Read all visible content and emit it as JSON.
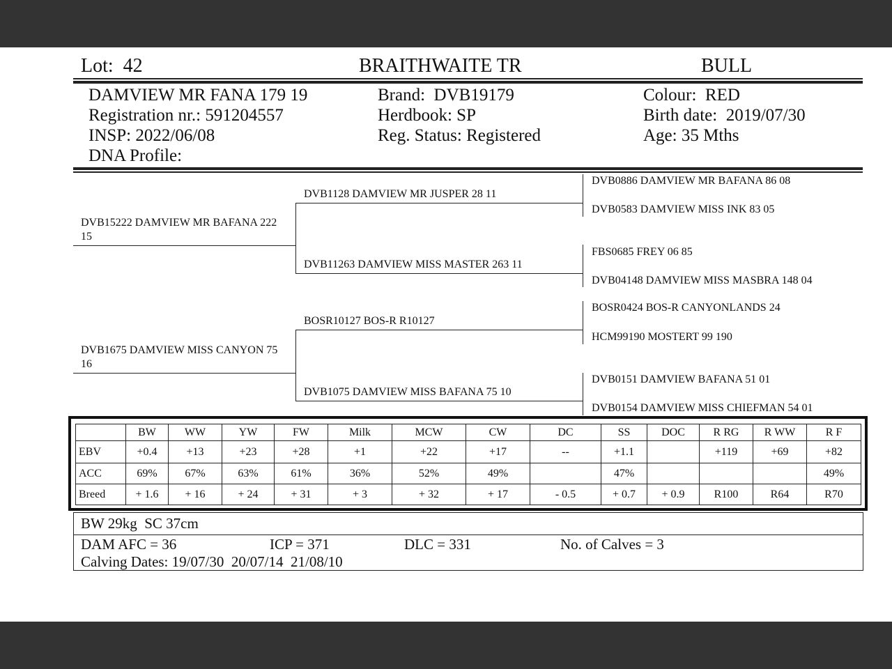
{
  "header": {
    "lot": "Lot:  42",
    "breeder": "BRAITHWAITE TR",
    "sex": "BULL"
  },
  "animal": {
    "name": "DAMVIEW MR FANA 179 19",
    "registration": "Registration nr.: 591204557",
    "insp": "INSP: 2022/06/08",
    "dna": "DNA Profile:",
    "brand": "Brand:  DVB19179",
    "herdbook": "Herdbook: SP",
    "reg_status": "Reg. Status: Registered",
    "colour": "Colour:  RED",
    "birth_date": "Birth date:  2019/07/30",
    "age": "Age: 35 Mths"
  },
  "pedigree": {
    "gen1": [
      "DVB15222 DAMVIEW MR BAFANA 222 15",
      "DVB1675 DAMVIEW MISS CANYON 75 16"
    ],
    "gen2": [
      "DVB1128 DAMVIEW MR JUSPER 28 11",
      "DVB11263 DAMVIEW MISS MASTER 263 11",
      "BOSR10127 BOS-R R10127",
      "DVB1075 DAMVIEW MISS BAFANA 75 10"
    ],
    "gen3": [
      "DVB0886 DAMVIEW MR BAFANA 86 08",
      "DVB0583 DAMVIEW MISS INK 83 05",
      "FBS0685 FREY 06 85",
      "DVB04148 DAMVIEW MISS MASBRA 148 04",
      "BOSR0424 BOS-R CANYONLANDS 24",
      "HCM99190 MOSTERT 99 190",
      "DVB0151 DAMVIEW BAFANA 51 01",
      "DVB0154 DAMVIEW MISS CHIEFMAN 54 01"
    ]
  },
  "ebv_table": {
    "columns": [
      "BW",
      "WW",
      "YW",
      "FW",
      "Milk",
      "MCW",
      "CW",
      "DC",
      "SS",
      "DOC",
      "R RG",
      "R WW",
      "R F"
    ],
    "rows": [
      {
        "label": "EBV",
        "values": [
          "+0.4",
          "+13",
          "+23",
          "+28",
          "+1",
          "+22",
          "+17",
          "--",
          "+1.1",
          null,
          "+119",
          "+69",
          "+82"
        ]
      },
      {
        "label": "ACC",
        "values": [
          "69%",
          "67%",
          "63%",
          "61%",
          "36%",
          "52%",
          "49%",
          null,
          "47%",
          null,
          null,
          null,
          "49%"
        ]
      },
      {
        "label": "Breed",
        "values": [
          "+ 1.6",
          "+ 16",
          "+ 24",
          "+ 31",
          "+ 3",
          "+ 32",
          "+ 17",
          "- 0.5",
          "+ 0.7",
          "+ 0.9",
          "R100",
          "R64",
          "R70"
        ]
      }
    ]
  },
  "footer": {
    "measures": "BW 29kg  SC 37cm",
    "dam_afc": "DAM AFC = 36",
    "icp": "ICP = 371",
    "dlc": "DLC = 331",
    "calves": "No. of Calves = 3",
    "calving_dates": "Calving Dates: 19/07/30  20/07/14  21/08/10"
  }
}
